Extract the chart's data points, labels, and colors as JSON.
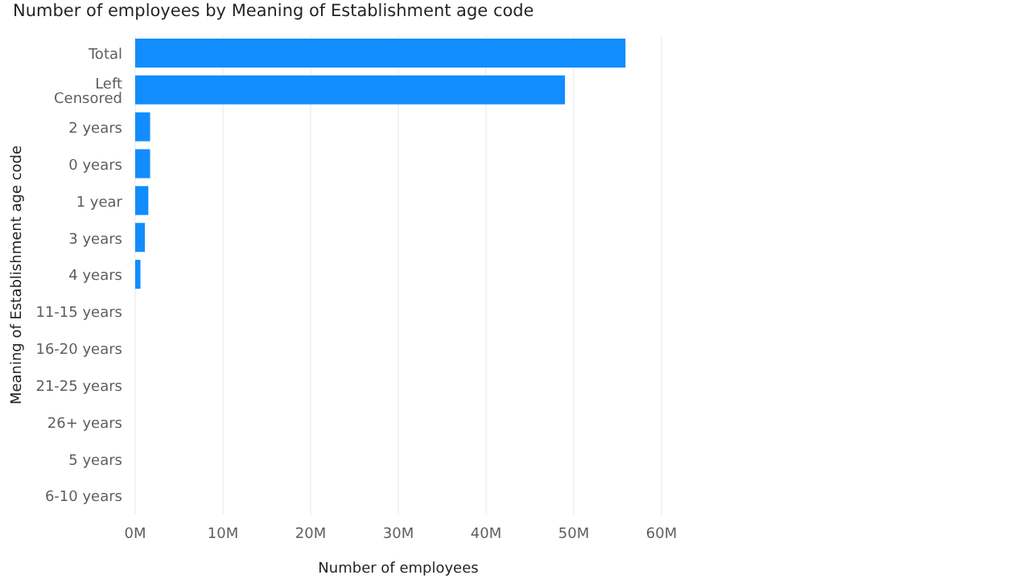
{
  "chart_data": {
    "type": "bar",
    "orientation": "horizontal",
    "title": "Number of employees by Meaning of Establishment age code",
    "xlabel": "Number of employees",
    "ylabel": "Meaning of Establishment age code",
    "categories": [
      "Total",
      "Left Censored",
      "2 years",
      "0 years",
      "1 year",
      "3 years",
      "4 years",
      "11-15 years",
      "16-20 years",
      "21-25 years",
      "26+ years",
      "5 years",
      "6-10 years"
    ],
    "values": [
      55.9,
      49.0,
      1.7,
      1.7,
      1.5,
      1.1,
      0.6,
      0,
      0,
      0,
      0,
      0,
      0
    ],
    "color": "#118dff",
    "xlim": [
      0,
      60
    ],
    "xticks": [
      {
        "value": 0,
        "label": "0M"
      },
      {
        "value": 10,
        "label": "10M"
      },
      {
        "value": 20,
        "label": "20M"
      },
      {
        "value": 30,
        "label": "30M"
      },
      {
        "value": 40,
        "label": "40M"
      },
      {
        "value": 50,
        "label": "50M"
      },
      {
        "value": 60,
        "label": "60M"
      }
    ],
    "grid": "x"
  }
}
